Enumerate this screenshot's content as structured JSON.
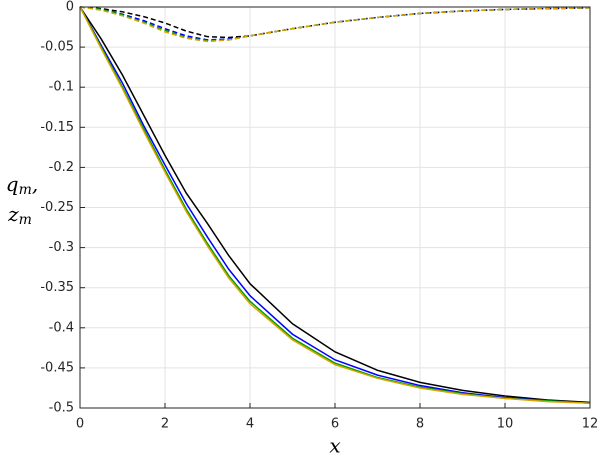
{
  "chart_data": {
    "type": "line",
    "xlabel": "x",
    "ylabel": [
      [
        "q",
        "m",
        ","
      ],
      [
        "z",
        "m"
      ]
    ],
    "x": [
      0,
      0.5,
      1,
      1.5,
      2,
      2.5,
      3,
      3.5,
      4,
      5,
      6,
      7,
      8,
      9,
      10,
      11,
      12
    ],
    "series": [
      {
        "color": "#000000",
        "style": "solid",
        "values": [
          0,
          -0.04,
          -0.085,
          -0.135,
          -0.185,
          -0.232,
          -0.27,
          -0.31,
          -0.345,
          -0.395,
          -0.43,
          -0.453,
          -0.468,
          -0.478,
          -0.485,
          -0.49,
          -0.493
        ]
      },
      {
        "color": "#0000ff",
        "style": "solid",
        "values": [
          0,
          -0.048,
          -0.095,
          -0.148,
          -0.197,
          -0.245,
          -0.287,
          -0.327,
          -0.36,
          -0.408,
          -0.44,
          -0.459,
          -0.472,
          -0.481,
          -0.487,
          -0.491,
          -0.494
        ]
      },
      {
        "color": "#00a000",
        "style": "solid",
        "values": [
          0,
          -0.05,
          -0.1,
          -0.152,
          -0.203,
          -0.252,
          -0.295,
          -0.335,
          -0.367,
          -0.413,
          -0.444,
          -0.462,
          -0.474,
          -0.482,
          -0.488,
          -0.491,
          -0.494
        ]
      },
      {
        "color": "#d9a400",
        "style": "solid",
        "values": [
          0,
          -0.052,
          -0.102,
          -0.155,
          -0.206,
          -0.255,
          -0.298,
          -0.338,
          -0.37,
          -0.415,
          -0.446,
          -0.463,
          -0.475,
          -0.483,
          -0.488,
          -0.492,
          -0.494
        ]
      },
      {
        "color": "#000000",
        "style": "dashed",
        "values": [
          0,
          -0.002,
          -0.006,
          -0.012,
          -0.02,
          -0.03,
          -0.037,
          -0.038,
          -0.036,
          -0.027,
          -0.019,
          -0.013,
          -0.008,
          -0.005,
          -0.003,
          -0.002,
          -0.001
        ]
      },
      {
        "color": "#0000ff",
        "style": "dashed",
        "values": [
          0,
          -0.003,
          -0.009,
          -0.017,
          -0.027,
          -0.036,
          -0.041,
          -0.04,
          -0.036,
          -0.027,
          -0.019,
          -0.013,
          -0.008,
          -0.005,
          -0.003,
          -0.002,
          -0.001
        ]
      },
      {
        "color": "#00a000",
        "style": "dashed",
        "values": [
          0,
          -0.003,
          -0.01,
          -0.019,
          -0.029,
          -0.038,
          -0.042,
          -0.041,
          -0.036,
          -0.027,
          -0.019,
          -0.013,
          -0.008,
          -0.005,
          -0.003,
          -0.002,
          -0.001
        ]
      },
      {
        "color": "#d9a400",
        "style": "dashed",
        "values": [
          0,
          -0.004,
          -0.011,
          -0.02,
          -0.031,
          -0.039,
          -0.043,
          -0.041,
          -0.036,
          -0.027,
          -0.019,
          -0.013,
          -0.008,
          -0.005,
          -0.003,
          -0.002,
          -0.001
        ]
      }
    ],
    "xlim": [
      0,
      12
    ],
    "xticks": [
      0,
      2,
      4,
      6,
      8,
      10,
      12
    ],
    "ylim": [
      -0.5,
      0
    ],
    "yticks": [
      0,
      -0.05,
      -0.1,
      -0.15,
      -0.2,
      -0.25,
      -0.3,
      -0.35,
      -0.4,
      -0.45,
      -0.5
    ],
    "grid": true
  }
}
